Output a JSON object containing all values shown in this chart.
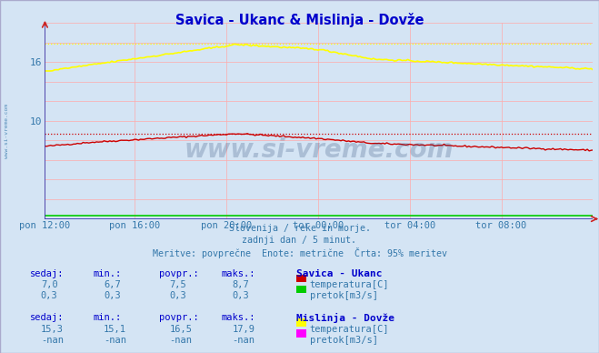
{
  "title": "Savica - Ukanc & Mislinja - Dovže",
  "title_color": "#0000cc",
  "bg_color": "#d4e4f4",
  "plot_bg_color": "#d4e4f4",
  "grid_color": "#ffaaaa",
  "axis_color": "#3333aa",
  "tick_color": "#3377aa",
  "x_labels": [
    "pon 12:00",
    "pon 16:00",
    "pon 20:00",
    "tor 00:00",
    "tor 04:00",
    "tor 08:00"
  ],
  "x_ticks_norm": [
    0.0,
    0.1667,
    0.3333,
    0.5,
    0.6667,
    0.8333
  ],
  "n_points": 288,
  "y_min": 0,
  "y_max": 20,
  "y_ticks": [
    10,
    16
  ],
  "y_tick_labels": [
    "10",
    "16"
  ],
  "watermark": "www.si-vreme.com",
  "watermark_color": "#1a3a6a",
  "watermark_alpha": 0.22,
  "sub_text1": "Slovenija / reke in morje.",
  "sub_text2": "zadnji dan / 5 minut.",
  "sub_text3": "Meritve: povprečne  Enote: metrične  Črta: 95% meritev",
  "sub_color": "#3377aa",
  "line1_color": "#cc0000",
  "line1_dashed_val": 8.7,
  "line1_label": "temperatura[C]",
  "line2_color": "#00cc00",
  "line2_label": "pretok[m3/s]",
  "line3_color": "#ffff00",
  "line3_dashed_val": 17.9,
  "line3_label": "temperatura[C]",
  "line4_color": "#ff00ff",
  "line4_label": "pretok[m3/s]",
  "legend1_title": "Savica - Ukanc",
  "legend2_title": "Mislinja - Dovže",
  "table1_headers": [
    "sedaj:",
    "min.:",
    "povpr.:",
    "maks.:"
  ],
  "table1_row1": [
    "7,0",
    "6,7",
    "7,5",
    "8,7"
  ],
  "table1_row2": [
    "0,3",
    "0,3",
    "0,3",
    "0,3"
  ],
  "table2_headers": [
    "sedaj:",
    "min.:",
    "povpr.:",
    "maks.:"
  ],
  "table2_row1": [
    "15,3",
    "15,1",
    "16,5",
    "17,9"
  ],
  "table2_row2": [
    "-nan",
    "-nan",
    "-nan",
    "-nan"
  ],
  "left_watermark": "www.si-vreme.com"
}
